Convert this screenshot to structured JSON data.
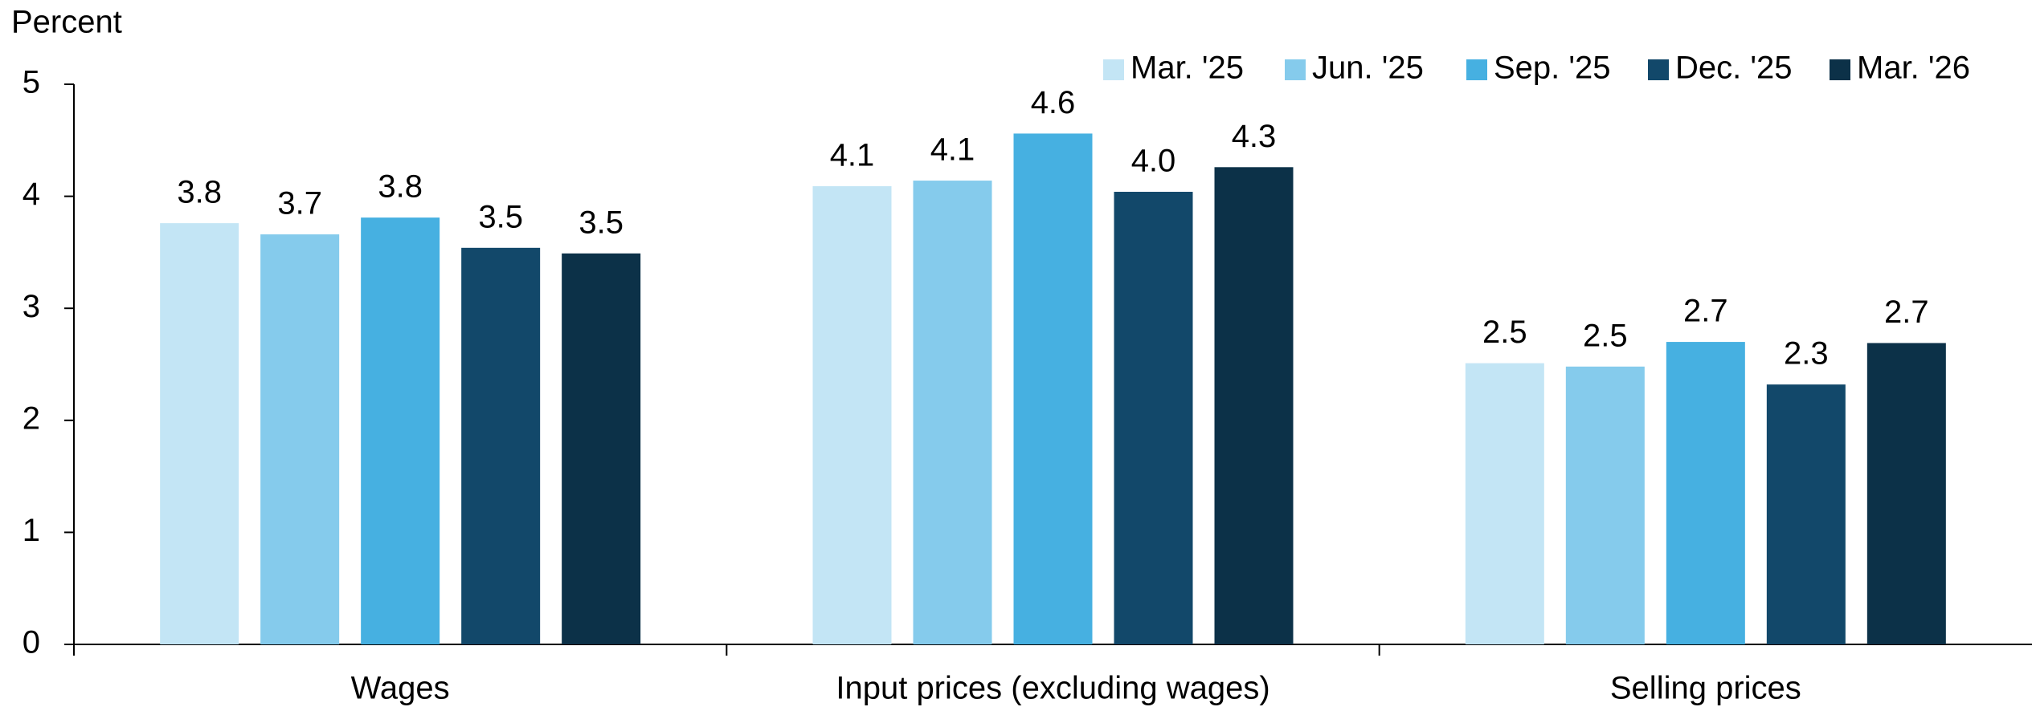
{
  "chart_data": {
    "type": "bar",
    "y_axis_label": "Percent",
    "categories": [
      "Wages",
      "Input prices (excluding wages)",
      "Selling prices"
    ],
    "series": [
      {
        "name": "Mar. '25",
        "color": "#c3e5f5",
        "values": [
          3.76,
          4.09,
          2.51
        ],
        "value_labels": [
          "3.8",
          "4.1",
          "2.5"
        ]
      },
      {
        "name": "Jun. '25",
        "color": "#85cbec",
        "values": [
          3.66,
          4.14,
          2.48
        ],
        "value_labels": [
          "3.7",
          "4.1",
          "2.5"
        ]
      },
      {
        "name": "Sep. '25",
        "color": "#46b0e1",
        "values": [
          3.81,
          4.56,
          2.7
        ],
        "value_labels": [
          "3.8",
          "4.6",
          "2.7"
        ]
      },
      {
        "name": "Dec. '25",
        "color": "#12486a",
        "values": [
          3.54,
          4.04,
          2.32
        ],
        "value_labels": [
          "3.5",
          "4.0",
          "2.3"
        ]
      },
      {
        "name": "Mar. '26",
        "color": "#0c3148",
        "values": [
          3.49,
          4.26,
          2.69
        ],
        "value_labels": [
          "3.5",
          "4.3",
          "2.7"
        ]
      }
    ],
    "ylim": [
      0,
      5
    ],
    "yticks": [
      0,
      1,
      2,
      3,
      4,
      5
    ],
    "grid": false,
    "legend": "top-right"
  }
}
